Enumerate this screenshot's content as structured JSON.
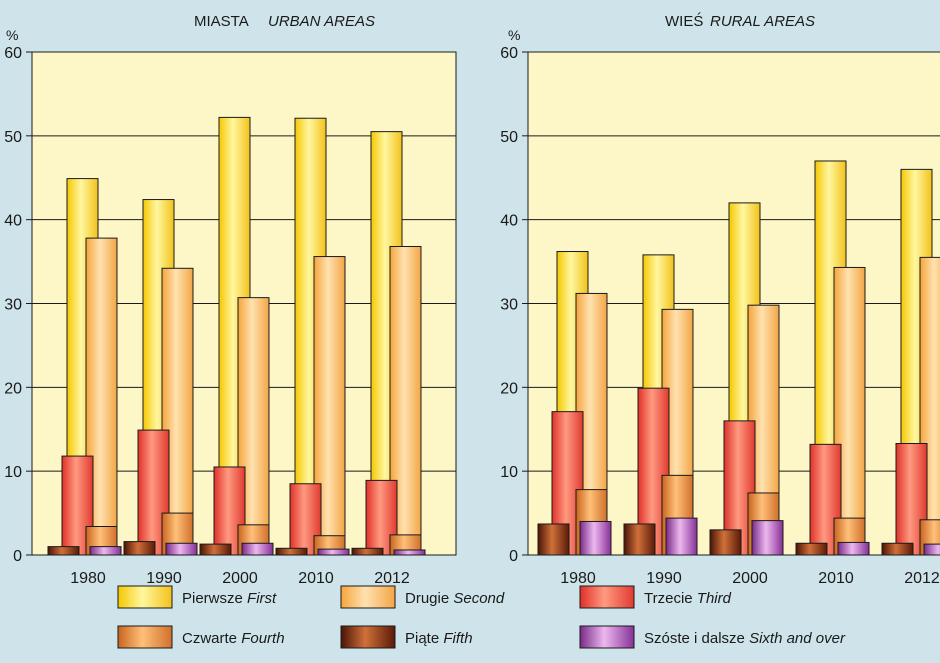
{
  "chart_data": [
    {
      "type": "bar",
      "title": "MIASTA",
      "title_en": "URBAN AREAS",
      "ylabel": "%",
      "ylim": [
        0,
        60
      ],
      "yticks": [
        0,
        10,
        20,
        30,
        40,
        50,
        60
      ],
      "grid": true,
      "categories": [
        "1980",
        "1990",
        "2000",
        "2010",
        "2012"
      ],
      "series": [
        {
          "name": "Pierwsze First",
          "values": [
            44.9,
            42.4,
            52.2,
            52.1,
            50.5
          ]
        },
        {
          "name": "Drugie Second",
          "values": [
            37.8,
            34.2,
            30.7,
            35.6,
            36.8
          ]
        },
        {
          "name": "Trzecie Third",
          "values": [
            11.8,
            14.9,
            10.5,
            8.5,
            8.9
          ]
        },
        {
          "name": "Czwarte Fourth",
          "values": [
            3.4,
            5.0,
            3.6,
            2.3,
            2.4
          ]
        },
        {
          "name": "Piąte Fifth",
          "values": [
            1.0,
            1.6,
            1.3,
            0.8,
            0.8
          ]
        },
        {
          "name": "Szóste i dalsze Sixth and over",
          "values": [
            1.0,
            1.4,
            1.4,
            0.7,
            0.6
          ]
        }
      ]
    },
    {
      "type": "bar",
      "title": "WIEŚ",
      "title_en": "RURAL AREAS",
      "ylabel": "%",
      "ylim": [
        0,
        60
      ],
      "yticks": [
        0,
        10,
        20,
        30,
        40,
        50,
        60
      ],
      "grid": true,
      "categories": [
        "1980",
        "1990",
        "2000",
        "2010",
        "2012"
      ],
      "series": [
        {
          "name": "Pierwsze First",
          "values": [
            36.2,
            35.8,
            42.0,
            47.0,
            46.0
          ]
        },
        {
          "name": "Drugie Second",
          "values": [
            31.2,
            29.3,
            29.8,
            34.3,
            35.5
          ]
        },
        {
          "name": "Trzecie Third",
          "values": [
            17.1,
            19.9,
            16.0,
            13.2,
            13.3
          ]
        },
        {
          "name": "Czwarte Fourth",
          "values": [
            7.8,
            9.5,
            7.4,
            4.4,
            4.2
          ]
        },
        {
          "name": "Piąte Fifth",
          "values": [
            3.7,
            3.7,
            3.0,
            1.4,
            1.4
          ]
        },
        {
          "name": "Szóste i dalsze Sixth and over",
          "values": [
            4.0,
            4.4,
            4.1,
            1.5,
            1.3
          ]
        }
      ]
    }
  ],
  "legend": {
    "items": [
      {
        "label": "Pierwsze",
        "label_en": "First",
        "color": "#ffe94a"
      },
      {
        "label": "Drugie",
        "label_en": "Second",
        "color": "#ffbe62"
      },
      {
        "label": "Trzecie",
        "label_en": "Third",
        "color": "#ef4a3c"
      },
      {
        "label": "Czwarte",
        "label_en": "Fourth",
        "color": "#e8883a"
      },
      {
        "label": "Piąte",
        "label_en": "Fifth",
        "color": "#7a2a10"
      },
      {
        "label": "Szóste i dalsze",
        "label_en": "Sixth and over",
        "color": "#a04fa8"
      }
    ]
  },
  "colors": {
    "background": "#cfe4ea",
    "plot_background": "#fdf7c8",
    "gridline": "#1a1a1a"
  }
}
